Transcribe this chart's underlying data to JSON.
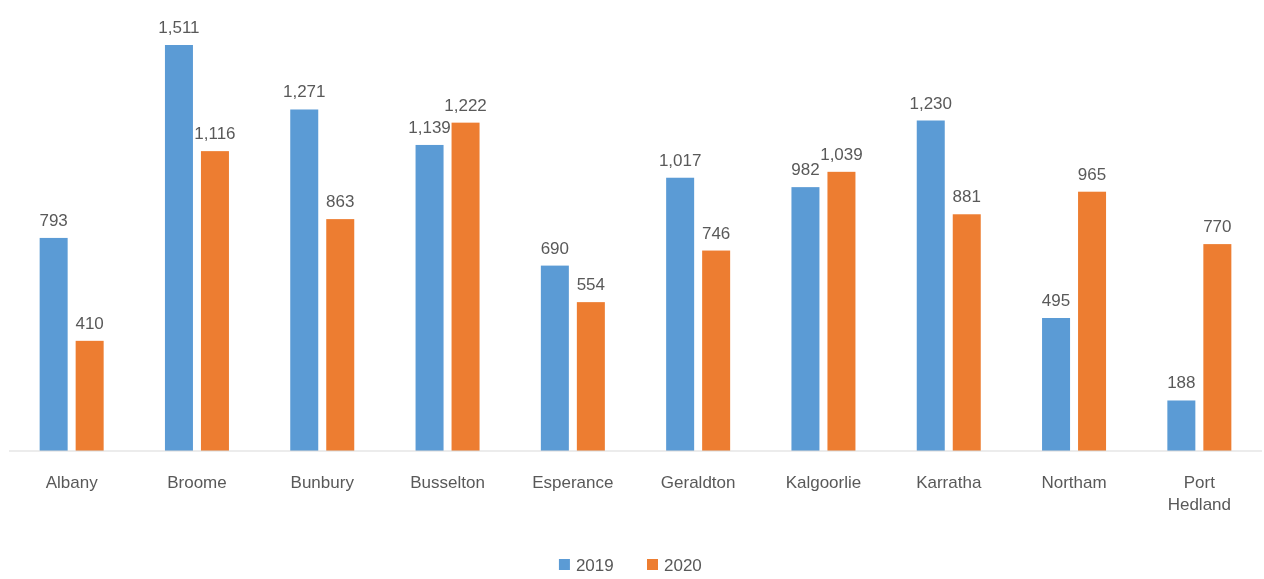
{
  "chart_data": {
    "type": "bar",
    "categories": [
      "Albany",
      "Broome",
      "Bunbury",
      "Busselton",
      "Esperance",
      "Geraldton",
      "Kalgoorlie",
      "Karratha",
      "Northam",
      "Port Hedland"
    ],
    "series": [
      {
        "name": "2019",
        "color": "#5b9bd5",
        "values": [
          793,
          1511,
          1271,
          1139,
          690,
          1017,
          982,
          1230,
          495,
          188
        ],
        "value_labels": [
          "793",
          "1,511",
          "1,271",
          "1,139",
          "690",
          "1,017",
          "982",
          "1,230",
          "495",
          "188"
        ]
      },
      {
        "name": "2020",
        "color": "#ed7d31",
        "values": [
          410,
          1116,
          863,
          1222,
          554,
          746,
          1039,
          881,
          965,
          770
        ],
        "value_labels": [
          "410",
          "1,116",
          "863",
          "1,222",
          "554",
          "746",
          "1,039",
          "881",
          "965",
          "770"
        ]
      }
    ],
    "legend": "bottom"
  }
}
